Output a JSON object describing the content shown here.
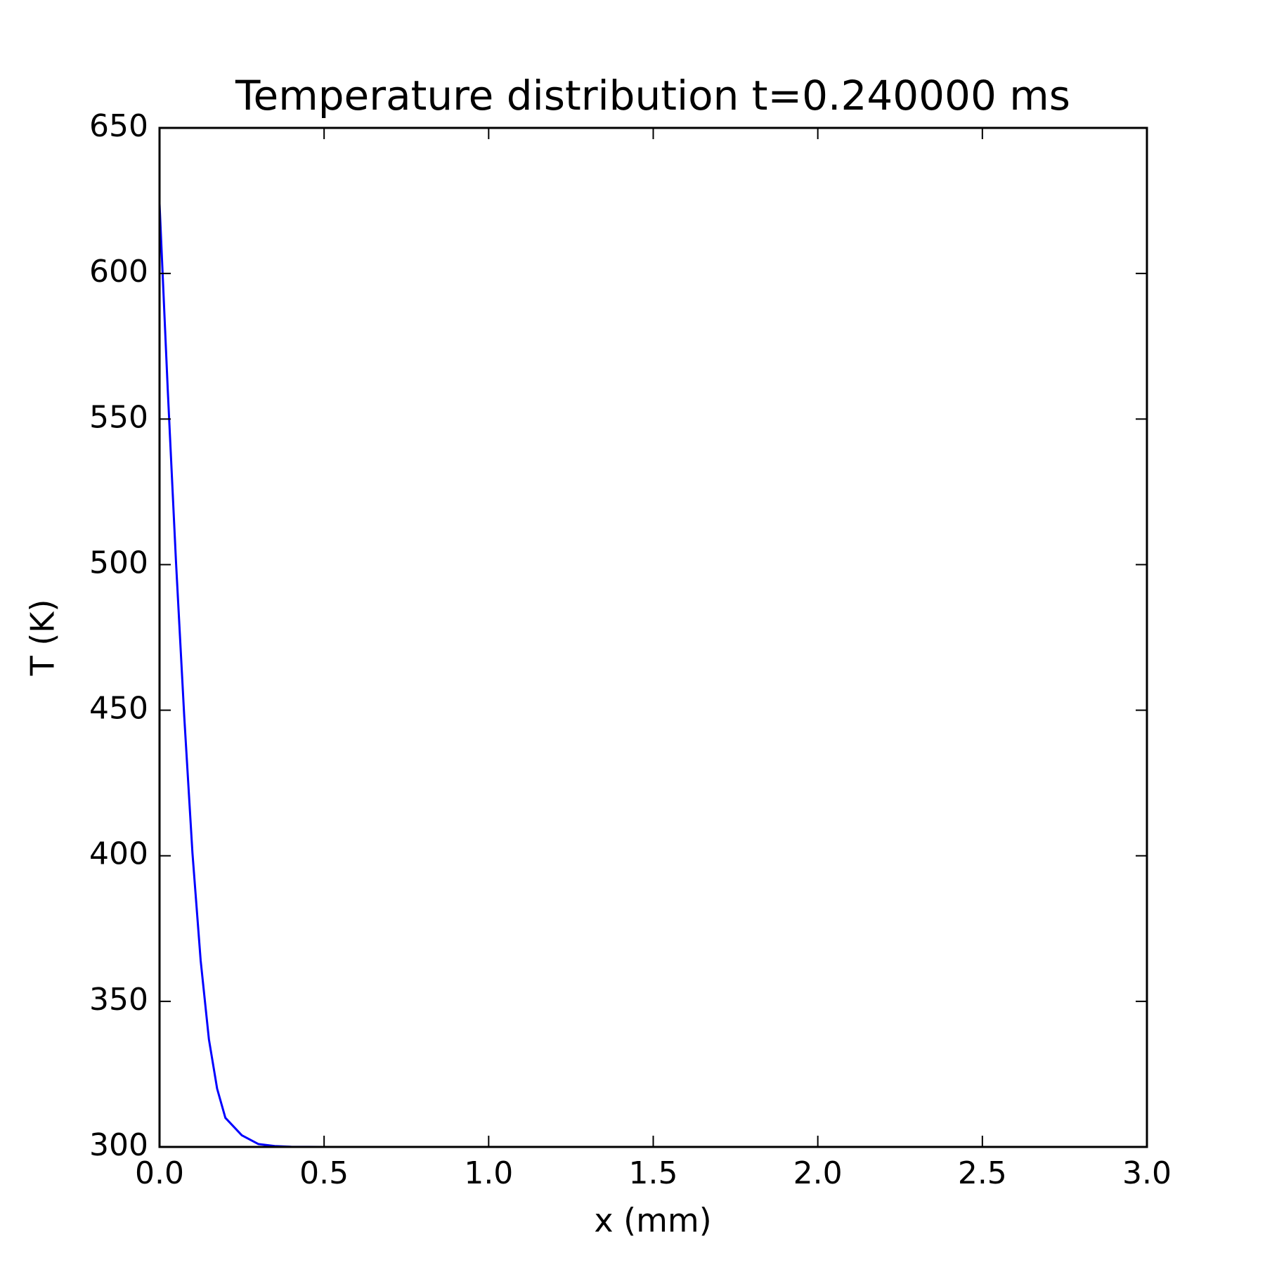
{
  "chart_data": {
    "type": "line",
    "title": "Temperature distribution t=0.240000 ms",
    "xlabel": "x (mm)",
    "ylabel": "T (K)",
    "x": [
      0,
      0.025,
      0.05,
      0.075,
      0.1,
      0.125,
      0.15,
      0.175,
      0.2,
      0.25,
      0.3,
      0.35,
      0.4,
      0.5,
      1.0,
      1.5,
      2.0,
      2.5,
      3.0
    ],
    "series": [
      {
        "color": "#0000ff",
        "values": [
          624,
          560,
          501,
          448,
          401,
          364,
          337,
          320,
          310,
          304,
          301,
          300.3,
          300.05,
          300,
          300,
          300,
          300,
          300,
          300
        ]
      }
    ],
    "xlim": [
      0,
      3
    ],
    "ylim": [
      300,
      650
    ],
    "xticks": [
      {
        "value": 0,
        "label": "0.0"
      },
      0.5,
      {
        "value": 1,
        "label": "1.0"
      },
      1.5,
      {
        "value": 2,
        "label": "2.0"
      },
      2.5,
      {
        "value": 3,
        "label": "3.0"
      }
    ],
    "yticks": [
      300,
      350,
      400,
      450,
      500,
      550,
      600,
      650
    ]
  }
}
